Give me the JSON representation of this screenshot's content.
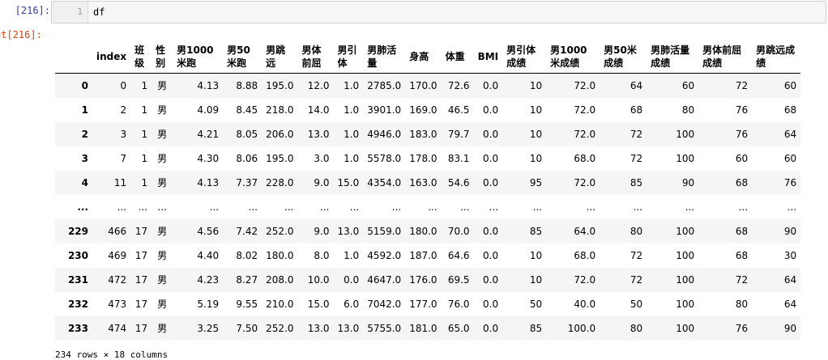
{
  "input_prompt": "[216]:",
  "output_prompt": "ut[216]:",
  "code": {
    "line_number": "1",
    "text": "df"
  },
  "table": {
    "columns": [
      "index",
      "班级",
      "性别",
      "男1000米跑",
      "男50米跑",
      "男跳远",
      "男体前屈",
      "男引体",
      "男肺活量",
      "身高",
      "体重",
      "BMI",
      "男引体成绩",
      "男1000米成绩",
      "男50米成绩",
      "男肺活量成绩",
      "男体前屈成绩",
      "男跳远成绩"
    ],
    "rows": [
      {
        "label": "0",
        "cells": [
          "0",
          "1",
          "男",
          "4.13",
          "8.88",
          "195.0",
          "12.0",
          "1.0",
          "2785.0",
          "170.0",
          "72.6",
          "0.0",
          "10",
          "72.0",
          "64",
          "60",
          "72",
          "60"
        ]
      },
      {
        "label": "1",
        "cells": [
          "2",
          "1",
          "男",
          "4.09",
          "8.45",
          "218.0",
          "14.0",
          "1.0",
          "3901.0",
          "169.0",
          "46.5",
          "0.0",
          "10",
          "72.0",
          "68",
          "80",
          "76",
          "68"
        ]
      },
      {
        "label": "2",
        "cells": [
          "3",
          "1",
          "男",
          "4.21",
          "8.05",
          "206.0",
          "13.0",
          "1.0",
          "4946.0",
          "183.0",
          "79.7",
          "0.0",
          "10",
          "72.0",
          "72",
          "100",
          "76",
          "64"
        ]
      },
      {
        "label": "3",
        "cells": [
          "7",
          "1",
          "男",
          "4.30",
          "8.06",
          "195.0",
          "3.0",
          "1.0",
          "5578.0",
          "178.0",
          "83.1",
          "0.0",
          "10",
          "68.0",
          "72",
          "100",
          "60",
          "60"
        ]
      },
      {
        "label": "4",
        "cells": [
          "11",
          "1",
          "男",
          "4.13",
          "7.37",
          "228.0",
          "9.0",
          "15.0",
          "4354.0",
          "163.0",
          "54.6",
          "0.0",
          "95",
          "72.0",
          "85",
          "90",
          "68",
          "76"
        ]
      },
      {
        "label": "...",
        "cells": [
          "...",
          "...",
          "...",
          "...",
          "...",
          "...",
          "...",
          "...",
          "...",
          "...",
          "...",
          "...",
          "...",
          "...",
          "...",
          "...",
          "...",
          "..."
        ]
      },
      {
        "label": "229",
        "cells": [
          "466",
          "17",
          "男",
          "4.56",
          "7.42",
          "252.0",
          "9.0",
          "13.0",
          "5159.0",
          "180.0",
          "70.0",
          "0.0",
          "85",
          "64.0",
          "80",
          "100",
          "68",
          "90"
        ]
      },
      {
        "label": "230",
        "cells": [
          "469",
          "17",
          "男",
          "4.40",
          "8.02",
          "180.0",
          "8.0",
          "1.0",
          "4592.0",
          "187.0",
          "64.6",
          "0.0",
          "10",
          "68.0",
          "72",
          "100",
          "68",
          "30"
        ]
      },
      {
        "label": "231",
        "cells": [
          "472",
          "17",
          "男",
          "4.23",
          "8.27",
          "208.0",
          "10.0",
          "0.0",
          "4647.0",
          "176.0",
          "69.5",
          "0.0",
          "10",
          "72.0",
          "72",
          "100",
          "72",
          "64"
        ]
      },
      {
        "label": "232",
        "cells": [
          "473",
          "17",
          "男",
          "5.19",
          "9.55",
          "210.0",
          "15.0",
          "6.0",
          "7042.0",
          "177.0",
          "76.0",
          "0.0",
          "50",
          "40.0",
          "50",
          "100",
          "80",
          "64"
        ]
      },
      {
        "label": "233",
        "cells": [
          "474",
          "17",
          "男",
          "3.25",
          "7.50",
          "252.0",
          "13.0",
          "13.0",
          "5755.0",
          "181.0",
          "65.0",
          "0.0",
          "85",
          "100.0",
          "80",
          "100",
          "76",
          "90"
        ]
      }
    ]
  },
  "footer_partial": "234 rows × 18 columns"
}
